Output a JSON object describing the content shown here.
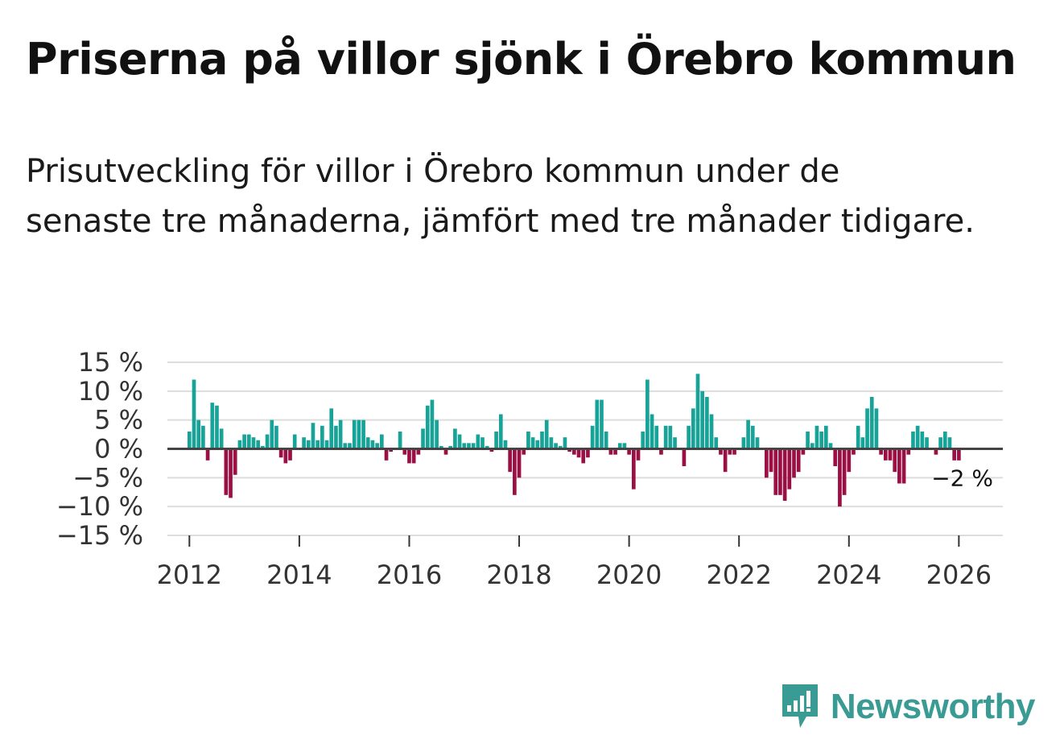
{
  "header": {
    "title": "Priserna på villor sjönk i Örebro kommun",
    "subtitle": "Prisutveckling för villor i Örebro kommun under de senaste tre månaderna, jämfört med tre månader tidigare."
  },
  "brand": {
    "name": "Newsworthy",
    "logo_icon": "newsworthy-logo-icon"
  },
  "colors": {
    "positive": "#17a398",
    "negative": "#9b0f45",
    "grid": "#dddddd",
    "zero_line": "#444444"
  },
  "chart_data": {
    "type": "bar",
    "title": "Priserna på villor sjönk i Örebro kommun",
    "xlabel": "",
    "ylabel": "",
    "unit": "%",
    "x_start": 2012.0,
    "x_step_months": 1,
    "xlim": [
      2011.6,
      2026.8
    ],
    "ylim": [
      -15,
      15
    ],
    "y_ticks": [
      15,
      10,
      5,
      0,
      -5,
      -10,
      -15
    ],
    "y_tick_labels": [
      "15 %",
      "10 %",
      "5 %",
      "0 %",
      "−5 %",
      "−10 %",
      "−15 %"
    ],
    "x_ticks": [
      2012,
      2014,
      2016,
      2018,
      2020,
      2022,
      2024,
      2026
    ],
    "x_tick_labels": [
      "2012",
      "2014",
      "2016",
      "2018",
      "2020",
      "2022",
      "2024",
      "2026"
    ],
    "end_label": "−2 %",
    "values": [
      3,
      12,
      5,
      4,
      -2,
      8,
      7.5,
      3.5,
      -8,
      -8.5,
      -4.5,
      1.5,
      2.5,
      2.5,
      2,
      1.5,
      0.5,
      2.5,
      5,
      4,
      -1.5,
      -2.5,
      -2,
      2.5,
      0,
      2,
      1.5,
      4.5,
      1.5,
      4,
      1.5,
      7,
      4,
      5,
      1,
      1,
      5,
      5,
      5,
      2,
      1.5,
      1,
      2.5,
      -2,
      -0.5,
      0,
      3,
      -1,
      -2.5,
      -2.5,
      -1,
      3.5,
      7.5,
      8.5,
      5,
      0.5,
      -1,
      0.5,
      3.5,
      2.5,
      1,
      1,
      1,
      2.5,
      2,
      0.5,
      -0.5,
      3,
      6,
      1.5,
      -4,
      -8,
      -5,
      -1,
      3,
      2,
      1.5,
      3,
      5,
      2,
      1,
      0.5,
      2,
      -0.5,
      -1,
      -1.5,
      -2.5,
      -1.5,
      4,
      8.5,
      8.5,
      3,
      -1,
      -1,
      1,
      1,
      -1,
      -7,
      -2,
      3,
      12,
      6,
      4,
      -1,
      4,
      4,
      2,
      0,
      -3,
      4,
      7,
      13,
      10,
      9,
      6,
      2,
      -1,
      -4,
      -1,
      -1,
      0,
      2,
      5,
      4,
      2,
      0,
      -5,
      -4,
      -8,
      -8,
      -9,
      -7,
      -5,
      -4,
      -1,
      3,
      1,
      4,
      3,
      4,
      1,
      -3,
      -10,
      -8,
      -4,
      -1,
      4,
      2,
      7,
      9,
      7,
      -1,
      -2,
      -2,
      -4,
      -6,
      -6,
      -1,
      3,
      4,
      3,
      2,
      0,
      -1,
      2,
      3,
      2,
      -2,
      -2
    ]
  }
}
